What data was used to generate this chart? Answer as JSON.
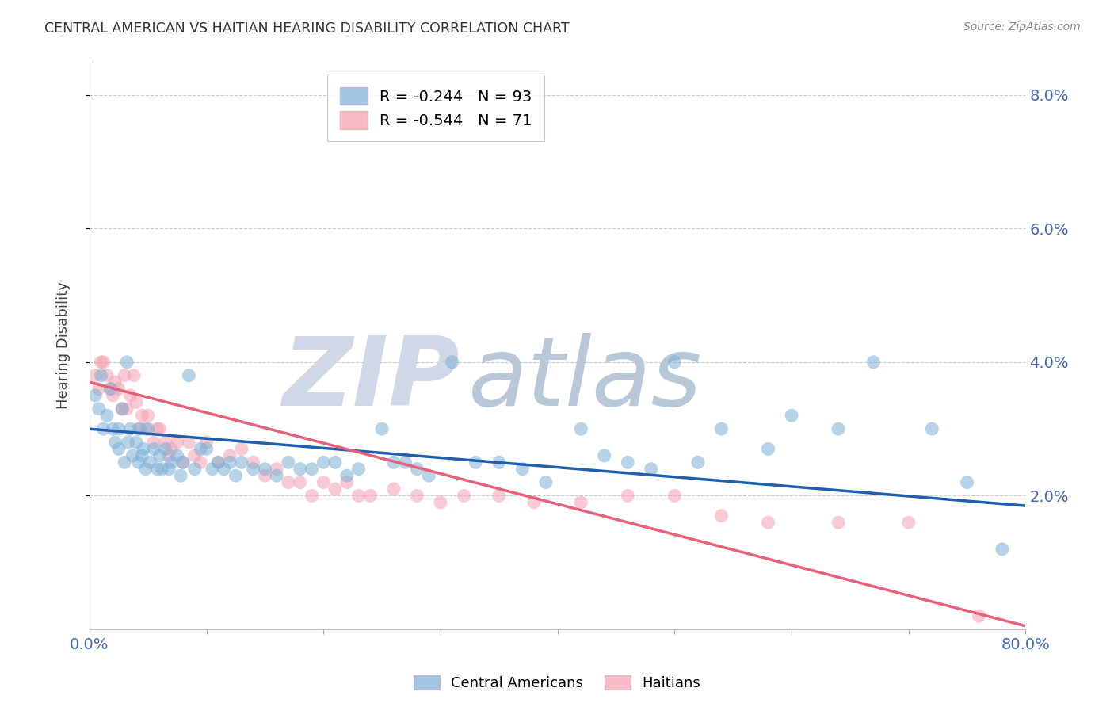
{
  "title": "CENTRAL AMERICAN VS HAITIAN HEARING DISABILITY CORRELATION CHART",
  "source": "Source: ZipAtlas.com",
  "ylabel": "Hearing Disability",
  "xlim": [
    0.0,
    0.8
  ],
  "ylim": [
    0.0,
    0.085
  ],
  "yticks": [
    0.02,
    0.04,
    0.06,
    0.08
  ],
  "ytick_labels": [
    "2.0%",
    "4.0%",
    "6.0%",
    "8.0%"
  ],
  "xticks": [
    0.0,
    0.1,
    0.2,
    0.3,
    0.4,
    0.5,
    0.6,
    0.7,
    0.8
  ],
  "blue_label": "Central Americans",
  "pink_label": "Haitians",
  "blue_R": "-0.244",
  "blue_N": "93",
  "pink_R": "-0.544",
  "pink_N": "71",
  "blue_color": "#7BAFD4",
  "pink_color": "#F4A0B0",
  "blue_line_color": "#1F5FAD",
  "pink_line_color": "#E8607A",
  "watermark_zip": "ZIP",
  "watermark_atlas": "atlas",
  "watermark_color_zip": "#D0D8E8",
  "watermark_color_atlas": "#B8C8D8",
  "background_color": "#FFFFFF",
  "grid_color": "#CCCCCC",
  "title_color": "#333333",
  "tick_color": "#4466BB",
  "blue_x": [
    0.005,
    0.008,
    0.01,
    0.012,
    0.015,
    0.018,
    0.02,
    0.022,
    0.025,
    0.025,
    0.028,
    0.03,
    0.032,
    0.033,
    0.035,
    0.037,
    0.04,
    0.042,
    0.043,
    0.045,
    0.046,
    0.048,
    0.05,
    0.052,
    0.055,
    0.058,
    0.06,
    0.062,
    0.065,
    0.068,
    0.07,
    0.075,
    0.078,
    0.08,
    0.085,
    0.09,
    0.095,
    0.1,
    0.105,
    0.11,
    0.115,
    0.12,
    0.125,
    0.13,
    0.14,
    0.15,
    0.16,
    0.17,
    0.18,
    0.19,
    0.2,
    0.21,
    0.22,
    0.23,
    0.25,
    0.26,
    0.27,
    0.28,
    0.29,
    0.31,
    0.33,
    0.35,
    0.37,
    0.39,
    0.42,
    0.44,
    0.46,
    0.48,
    0.5,
    0.52,
    0.54,
    0.58,
    0.6,
    0.64,
    0.67,
    0.72,
    0.75,
    0.78
  ],
  "blue_y": [
    0.035,
    0.033,
    0.038,
    0.03,
    0.032,
    0.036,
    0.03,
    0.028,
    0.03,
    0.027,
    0.033,
    0.025,
    0.04,
    0.028,
    0.03,
    0.026,
    0.028,
    0.025,
    0.03,
    0.026,
    0.027,
    0.024,
    0.03,
    0.025,
    0.027,
    0.024,
    0.026,
    0.024,
    0.027,
    0.024,
    0.025,
    0.026,
    0.023,
    0.025,
    0.038,
    0.024,
    0.027,
    0.027,
    0.024,
    0.025,
    0.024,
    0.025,
    0.023,
    0.025,
    0.024,
    0.024,
    0.023,
    0.025,
    0.024,
    0.024,
    0.025,
    0.025,
    0.023,
    0.024,
    0.03,
    0.025,
    0.025,
    0.024,
    0.023,
    0.04,
    0.025,
    0.025,
    0.024,
    0.022,
    0.03,
    0.026,
    0.025,
    0.024,
    0.04,
    0.025,
    0.03,
    0.027,
    0.032,
    0.03,
    0.04,
    0.03,
    0.022,
    0.012
  ],
  "pink_x": [
    0.005,
    0.008,
    0.01,
    0.012,
    0.015,
    0.018,
    0.02,
    0.022,
    0.025,
    0.028,
    0.03,
    0.032,
    0.035,
    0.038,
    0.04,
    0.042,
    0.045,
    0.048,
    0.05,
    0.055,
    0.058,
    0.06,
    0.065,
    0.068,
    0.07,
    0.075,
    0.08,
    0.085,
    0.09,
    0.095,
    0.1,
    0.11,
    0.12,
    0.13,
    0.14,
    0.15,
    0.16,
    0.17,
    0.18,
    0.19,
    0.2,
    0.21,
    0.22,
    0.23,
    0.24,
    0.26,
    0.28,
    0.3,
    0.32,
    0.35,
    0.38,
    0.42,
    0.46,
    0.5,
    0.54,
    0.58,
    0.64,
    0.7,
    0.76
  ],
  "pink_y": [
    0.038,
    0.036,
    0.04,
    0.04,
    0.038,
    0.036,
    0.035,
    0.037,
    0.036,
    0.033,
    0.038,
    0.033,
    0.035,
    0.038,
    0.034,
    0.03,
    0.032,
    0.03,
    0.032,
    0.028,
    0.03,
    0.03,
    0.028,
    0.026,
    0.027,
    0.028,
    0.025,
    0.028,
    0.026,
    0.025,
    0.028,
    0.025,
    0.026,
    0.027,
    0.025,
    0.023,
    0.024,
    0.022,
    0.022,
    0.02,
    0.022,
    0.021,
    0.022,
    0.02,
    0.02,
    0.021,
    0.02,
    0.019,
    0.02,
    0.02,
    0.019,
    0.019,
    0.02,
    0.02,
    0.017,
    0.016,
    0.016,
    0.016,
    0.002
  ],
  "blue_trend_x": [
    0.0,
    0.8
  ],
  "blue_trend_y": [
    0.03,
    0.0185
  ],
  "pink_trend_x": [
    0.0,
    0.8
  ],
  "pink_trend_y": [
    0.037,
    0.0005
  ]
}
